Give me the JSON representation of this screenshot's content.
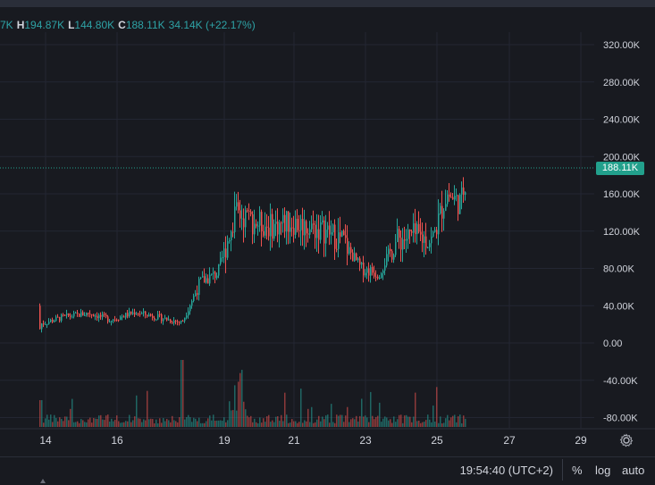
{
  "ohlc": {
    "o_suffix": "7K",
    "h_label": "H",
    "h_value": "194.87K",
    "l_label": "L",
    "l_value": "144.80K",
    "c_label": "C",
    "c_value": "188.11K",
    "change": "34.14K (+22.17%)"
  },
  "current_price_label": "188.11K",
  "price_axis": [
    "320.00K",
    "280.00K",
    "240.00K",
    "200.00K",
    "160.00K",
    "120.00K",
    "80.00K",
    "40.00K",
    "0.00",
    "-40.00K",
    "-80.00K"
  ],
  "time_axis": [
    "14",
    "16",
    "19",
    "21",
    "23",
    "25",
    "27",
    "29"
  ],
  "footer": {
    "time": "19:54:40 (UTC+2)",
    "percent": "%",
    "log": "log",
    "auto": "auto"
  },
  "colors": {
    "up": "#26a69a",
    "down": "#ef5350",
    "bg": "#181a20",
    "grid": "#232632"
  },
  "chart_data": {
    "type": "candlestick",
    "y_range": [
      -90000,
      330000
    ],
    "close_series": [
      {
        "day": 13.8,
        "value": 20000
      },
      {
        "day": 14.5,
        "value": 28000
      },
      {
        "day": 15.2,
        "value": 32000
      },
      {
        "day": 15.8,
        "value": 25000
      },
      {
        "day": 16.5,
        "value": 33000
      },
      {
        "day": 17.2,
        "value": 27000
      },
      {
        "day": 17.8,
        "value": 22000
      },
      {
        "day": 18.3,
        "value": 65000
      },
      {
        "day": 18.8,
        "value": 75000
      },
      {
        "day": 19.3,
        "value": 140000
      },
      {
        "day": 19.8,
        "value": 130000
      },
      {
        "day": 20.3,
        "value": 125000
      },
      {
        "day": 20.8,
        "value": 130000
      },
      {
        "day": 21.3,
        "value": 125000
      },
      {
        "day": 21.8,
        "value": 120000
      },
      {
        "day": 22.3,
        "value": 110000
      },
      {
        "day": 22.8,
        "value": 80000
      },
      {
        "day": 23.3,
        "value": 75000
      },
      {
        "day": 23.8,
        "value": 110000
      },
      {
        "day": 24.3,
        "value": 115000
      },
      {
        "day": 24.8,
        "value": 110000
      },
      {
        "day": 25.2,
        "value": 160000
      },
      {
        "day": 25.6,
        "value": 150000
      },
      {
        "day": 25.8,
        "value": 188110
      }
    ]
  }
}
